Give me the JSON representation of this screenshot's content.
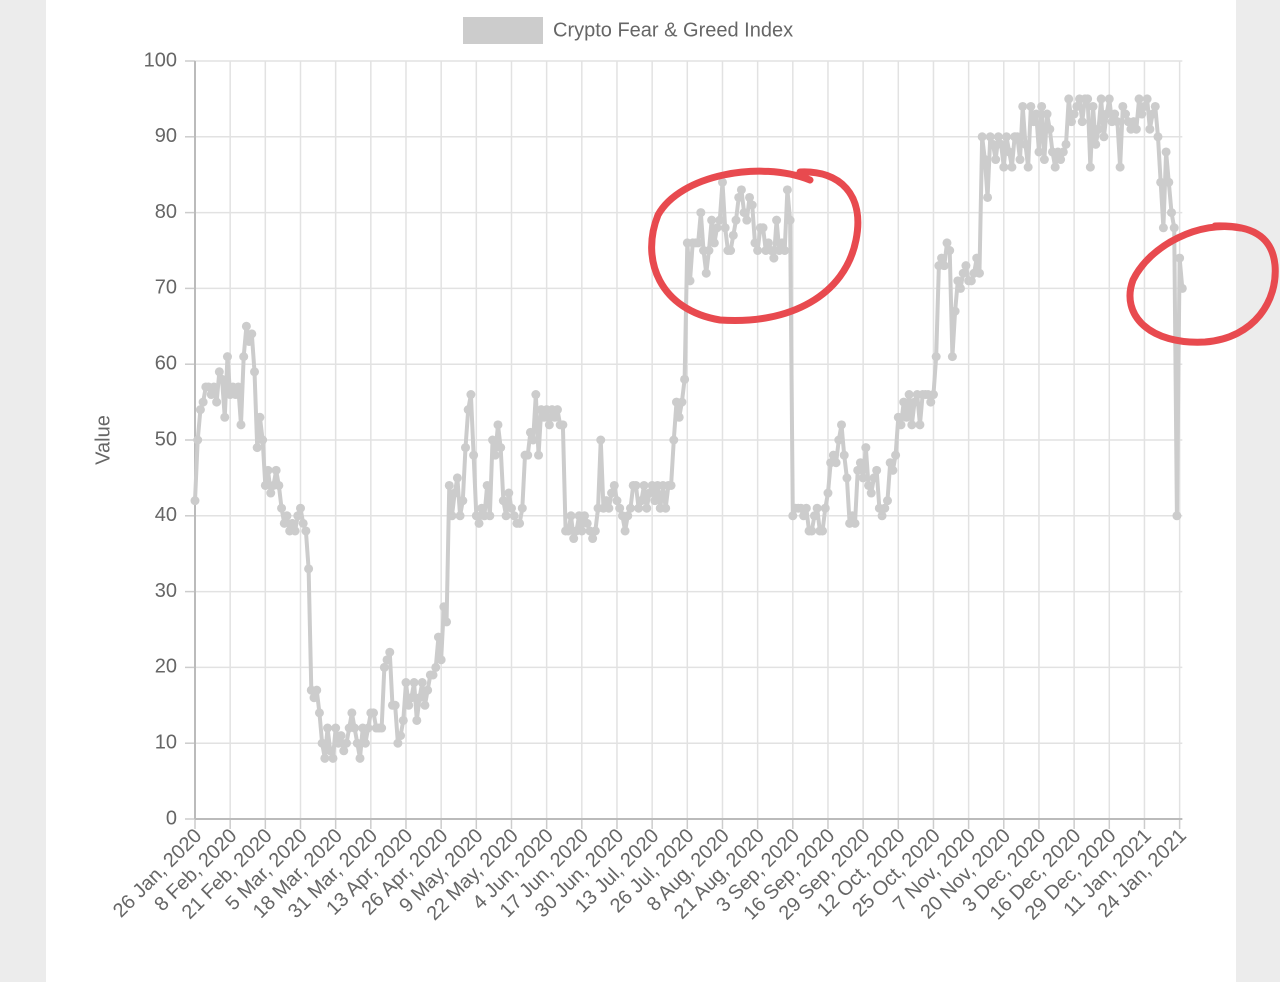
{
  "chart_data": {
    "type": "line",
    "legend": "top",
    "ylabel": "Value",
    "ylim": [
      0,
      100
    ],
    "yticks": [
      0,
      10,
      20,
      30,
      40,
      50,
      60,
      70,
      80,
      90,
      100
    ],
    "grid": true,
    "categories": [
      "26 Jan, 2020",
      null,
      null,
      null,
      null,
      null,
      null,
      null,
      null,
      null,
      null,
      null,
      null,
      "8 Feb, 2020",
      null,
      null,
      null,
      null,
      null,
      null,
      null,
      null,
      null,
      null,
      null,
      null,
      "21 Feb, 2020",
      null,
      null,
      null,
      null,
      null,
      null,
      null,
      null,
      null,
      null,
      null,
      null,
      "5 Mar, 2020",
      null,
      null,
      null,
      null,
      null,
      null,
      null,
      null,
      null,
      null,
      null,
      null,
      "18 Mar, 2020",
      null,
      null,
      null,
      null,
      null,
      null,
      null,
      null,
      null,
      null,
      null,
      null,
      "31 Mar, 2020",
      null,
      null,
      null,
      null,
      null,
      null,
      null,
      null,
      null,
      null,
      null,
      null,
      "13 Apr, 2020",
      null,
      null,
      null,
      null,
      null,
      null,
      null,
      null,
      null,
      null,
      null,
      null,
      "26 Apr, 2020",
      null,
      null,
      null,
      null,
      null,
      null,
      null,
      null,
      null,
      null,
      null,
      null,
      "9 May, 2020",
      null,
      null,
      null,
      null,
      null,
      null,
      null,
      null,
      null,
      null,
      null,
      null,
      "22 May, 2020",
      null,
      null,
      null,
      null,
      null,
      null,
      null,
      null,
      null,
      null,
      null,
      null,
      "4 Jun, 2020",
      null,
      null,
      null,
      null,
      null,
      null,
      null,
      null,
      null,
      null,
      null,
      null,
      "17 Jun, 2020",
      null,
      null,
      null,
      null,
      null,
      null,
      null,
      null,
      null,
      null,
      null,
      null,
      "30 Jun, 2020",
      null,
      null,
      null,
      null,
      null,
      null,
      null,
      null,
      null,
      null,
      null,
      null,
      "13 Jul, 2020",
      null,
      null,
      null,
      null,
      null,
      null,
      null,
      null,
      null,
      null,
      null,
      null,
      "26 Jul, 2020",
      null,
      null,
      null,
      null,
      null,
      null,
      null,
      null,
      null,
      null,
      null,
      null,
      "8 Aug, 2020",
      null,
      null,
      null,
      null,
      null,
      null,
      null,
      null,
      null,
      null,
      null,
      null,
      "21 Aug, 2020",
      null,
      null,
      null,
      null,
      null,
      null,
      null,
      null,
      null,
      null,
      null,
      null,
      "3 Sep, 2020",
      null,
      null,
      null,
      null,
      null,
      null,
      null,
      null,
      null,
      null,
      null,
      null,
      "16 Sep, 2020",
      null,
      null,
      null,
      null,
      null,
      null,
      null,
      null,
      null,
      null,
      null,
      null,
      "29 Sep, 2020",
      null,
      null,
      null,
      null,
      null,
      null,
      null,
      null,
      null,
      null,
      null,
      null,
      "12 Oct, 2020",
      null,
      null,
      null,
      null,
      null,
      null,
      null,
      null,
      null,
      null,
      null,
      null,
      "25 Oct, 2020",
      null,
      null,
      null,
      null,
      null,
      null,
      null,
      null,
      null,
      null,
      null,
      null,
      "7 Nov, 2020",
      null,
      null,
      null,
      null,
      null,
      null,
      null,
      null,
      null,
      null,
      null,
      null,
      "20 Nov, 2020",
      null,
      null,
      null,
      null,
      null,
      null,
      null,
      null,
      null,
      null,
      null,
      null,
      "3 Dec, 2020",
      null,
      null,
      null,
      null,
      null,
      null,
      null,
      null,
      null,
      null,
      null,
      null,
      "16 Dec, 2020",
      null,
      null,
      null,
      null,
      null,
      null,
      null,
      null,
      null,
      null,
      null,
      null,
      "29 Dec, 2020",
      null,
      null,
      null,
      null,
      null,
      null,
      null,
      null,
      null,
      null,
      null,
      null,
      "11 Jan, 2021",
      null,
      null,
      null,
      null,
      null,
      null,
      null,
      null,
      null,
      null,
      null,
      null,
      "24 Jan, 2021",
      null
    ],
    "series": [
      {
        "name": "Crypto Fear & Greed Index",
        "color": "#cccccc",
        "values": [
          42,
          50,
          54,
          55,
          57,
          57,
          56,
          57,
          55,
          59,
          58,
          53,
          61,
          56,
          57,
          56,
          57,
          52,
          61,
          65,
          63,
          64,
          59,
          49,
          53,
          50,
          44,
          46,
          43,
          44,
          46,
          44,
          41,
          39,
          40,
          38,
          39,
          38,
          40,
          41,
          39,
          38,
          33,
          17,
          16,
          17,
          14,
          10,
          8,
          12,
          9,
          8,
          12,
          10,
          11,
          9,
          10,
          12,
          14,
          12,
          10,
          8,
          12,
          10,
          12,
          14,
          14,
          12,
          12,
          12,
          20,
          21,
          22,
          15,
          15,
          10,
          11,
          13,
          18,
          15,
          16,
          18,
          13,
          16,
          18,
          15,
          17,
          19,
          19,
          20,
          24,
          21,
          28,
          26,
          44,
          40,
          43,
          45,
          40,
          42,
          49,
          54,
          56,
          48,
          40,
          39,
          41,
          40,
          44,
          40,
          50,
          48,
          52,
          49,
          42,
          40,
          43,
          41,
          40,
          39,
          39,
          41,
          48,
          48,
          51,
          50,
          56,
          48,
          54,
          53,
          54,
          52,
          54,
          53,
          54,
          52,
          52,
          38,
          38,
          40,
          37,
          38,
          40,
          38,
          40,
          39,
          38,
          37,
          38,
          41,
          50,
          41,
          42,
          41,
          43,
          44,
          42,
          41,
          40,
          38,
          40,
          41,
          44,
          44,
          41,
          42,
          44,
          41,
          43,
          44,
          42,
          44,
          41,
          44,
          41,
          44,
          44,
          50,
          55,
          53,
          55,
          58,
          76,
          71,
          76,
          76,
          76,
          80,
          75,
          72,
          75,
          79,
          76,
          78,
          79,
          84,
          78,
          75,
          75,
          77,
          79,
          82,
          83,
          80,
          79,
          82,
          81,
          76,
          75,
          78,
          78,
          75,
          76,
          75,
          74,
          79,
          75,
          76,
          75,
          83,
          79,
          40,
          41,
          41,
          41,
          40,
          41,
          38,
          38,
          40,
          41,
          38,
          38,
          41,
          43,
          47,
          48,
          47,
          50,
          52,
          48,
          45,
          39,
          40,
          39,
          46,
          47,
          45,
          49,
          44,
          43,
          45,
          46,
          41,
          40,
          41,
          42,
          47,
          46,
          48,
          53,
          52,
          55,
          53,
          56,
          52,
          55,
          56,
          52,
          56,
          56,
          56,
          55,
          56,
          61,
          73,
          74,
          73,
          76,
          75,
          61,
          67,
          71,
          70,
          72,
          73,
          71,
          71,
          72,
          74,
          72,
          90,
          87,
          82,
          90,
          89,
          87,
          90,
          89,
          86,
          90,
          88,
          86,
          90,
          90,
          87,
          94,
          89,
          86,
          94,
          92,
          93,
          88,
          94,
          87,
          93,
          91,
          88,
          86,
          88,
          87,
          88,
          89,
          95,
          92,
          93,
          94,
          95,
          92,
          95,
          95,
          86,
          94,
          89,
          91,
          95,
          90,
          93,
          95,
          92,
          93,
          92,
          86,
          94,
          93,
          92,
          91,
          92,
          91,
          95,
          93,
          94,
          95,
          91,
          93,
          94,
          90,
          84,
          78,
          88,
          84,
          80,
          78,
          40,
          74,
          70
        ]
      }
    ]
  }
}
